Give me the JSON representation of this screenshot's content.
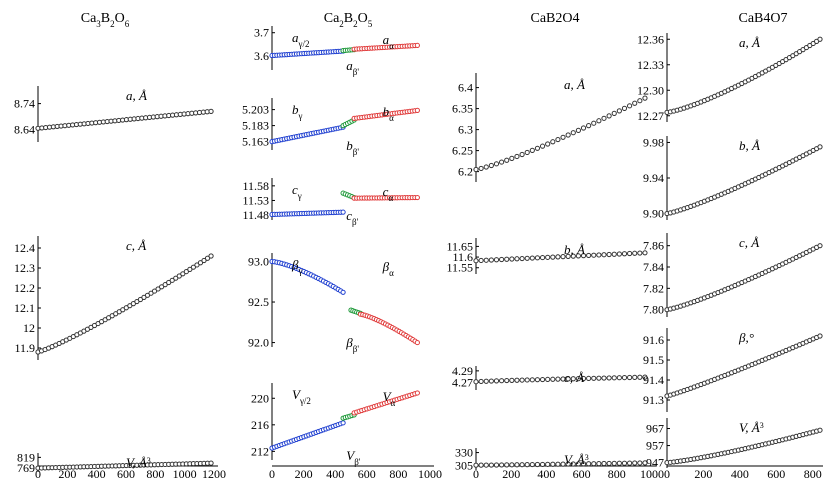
{
  "chart_data": {
    "type": "scatter",
    "markers": {
      "open_circle_color": "#333333",
      "gamma_color": "#1f3fd0",
      "beta_prime_color": "#1f9a3a",
      "alpha_color": "#e03a3a"
    },
    "columns": [
      {
        "title": "Ca3B2O6",
        "x_ticks": [
          "0",
          "200",
          "400",
          "600",
          "800",
          "1000",
          "1200"
        ],
        "xlim": [
          0,
          1200
        ],
        "panels": [
          {
            "label": "a, Å",
            "ylim": [
              8.6,
              8.8
            ],
            "y_ticks": [
              "8.74",
              "8.64"
            ],
            "series": [
              {
                "x_start": 0,
                "x_end": 1180,
                "n": 46,
                "y_start": 8.645,
                "y_end": 8.71,
                "color": "#333333"
              }
            ]
          },
          {
            "label": "c, Å",
            "ylim": [
              11.85,
              12.45
            ],
            "y_ticks": [
              "12.4",
              "12.3",
              "12.2",
              "12.1",
              "12",
              "11.9"
            ],
            "series": [
              {
                "x_start": 0,
                "x_end": 1180,
                "n": 50,
                "y_start": 11.88,
                "y_end": 12.36,
                "color": "#333333",
                "curve": 1.15
              }
            ]
          },
          {
            "label": "V, Å3",
            "ylim": [
              760,
              830
            ],
            "y_ticks": [
              "819",
              "769"
            ],
            "series": [
              {
                "x_start": 0,
                "x_end": 1180,
                "n": 50,
                "y_start": 769,
                "y_end": 792,
                "color": "#333333"
              }
            ]
          }
        ]
      },
      {
        "title": "Ca2B2O5",
        "x_ticks": [
          "0",
          "200",
          "400",
          "600",
          "800",
          "1000"
        ],
        "xlim": [
          0,
          1000
        ],
        "panels": [
          {
            "label": "aγ/2",
            "label2": "aβ'",
            "label3": "aα",
            "ylim": [
              3.55,
              3.72
            ],
            "y_ticks": [
              "3.7",
              "3.6"
            ],
            "series": [
              {
                "x_start": 0,
                "x_end": 450,
                "n": 30,
                "y_start": 3.603,
                "y_end": 3.622,
                "color": "#1f3fd0"
              },
              {
                "x_start": 450,
                "x_end": 520,
                "n": 6,
                "y_start": 3.624,
                "y_end": 3.628,
                "color": "#1f9a3a"
              },
              {
                "x_start": 520,
                "x_end": 920,
                "n": 26,
                "y_start": 3.63,
                "y_end": 3.646,
                "color": "#e03a3a"
              }
            ]
          },
          {
            "label": "bγ",
            "label2": "bβ'",
            "label3": "bα",
            "ylim": [
              5.155,
              5.215
            ],
            "y_ticks": [
              "5.203",
              "5.183",
              "5.163"
            ],
            "series": [
              {
                "x_start": 0,
                "x_end": 450,
                "n": 30,
                "y_start": 5.163,
                "y_end": 5.181,
                "color": "#1f3fd0"
              },
              {
                "x_start": 450,
                "x_end": 520,
                "n": 6,
                "y_start": 5.183,
                "y_end": 5.19,
                "color": "#1f9a3a"
              },
              {
                "x_start": 520,
                "x_end": 920,
                "n": 26,
                "y_start": 5.192,
                "y_end": 5.202,
                "color": "#e03a3a"
              }
            ]
          },
          {
            "label": "cγ",
            "label2": "cβ'",
            "label3": "cα",
            "ylim": [
              11.47,
              11.6
            ],
            "y_ticks": [
              "11.58",
              "11.53",
              "11.48"
            ],
            "series": [
              {
                "x_start": 0,
                "x_end": 450,
                "n": 30,
                "y_start": 11.482,
                "y_end": 11.49,
                "color": "#1f3fd0"
              },
              {
                "x_start": 450,
                "x_end": 520,
                "n": 6,
                "y_start": 11.555,
                "y_end": 11.54,
                "color": "#1f9a3a"
              },
              {
                "x_start": 520,
                "x_end": 920,
                "n": 26,
                "y_start": 11.538,
                "y_end": 11.54,
                "color": "#e03a3a"
              }
            ]
          },
          {
            "label": "βγ",
            "label2": "ββ'",
            "label3": "βα",
            "ylim": [
              91.97,
              93.08
            ],
            "y_ticks": [
              "93.0",
              "92.5",
              "92.0"
            ],
            "series": [
              {
                "x_start": 0,
                "x_end": 450,
                "n": 30,
                "y_start": 93.0,
                "y_end": 92.62,
                "color": "#1f3fd0",
                "curve": 1.4
              },
              {
                "x_start": 500,
                "x_end": 560,
                "n": 6,
                "y_start": 92.4,
                "y_end": 92.36,
                "color": "#1f9a3a"
              },
              {
                "x_start": 560,
                "x_end": 920,
                "n": 26,
                "y_start": 92.35,
                "y_end": 92.0,
                "color": "#e03a3a",
                "curve": 1.3
              }
            ]
          },
          {
            "label": "Vγ/2",
            "label2": "Vβ'",
            "label3": "Vα",
            "ylim": [
              211,
              222
            ],
            "y_ticks": [
              "220",
              "216",
              "212"
            ],
            "series": [
              {
                "x_start": 0,
                "x_end": 450,
                "n": 30,
                "y_start": 212.5,
                "y_end": 216.3,
                "color": "#1f3fd0"
              },
              {
                "x_start": 450,
                "x_end": 520,
                "n": 6,
                "y_start": 217.0,
                "y_end": 217.5,
                "color": "#1f9a3a"
              },
              {
                "x_start": 520,
                "x_end": 920,
                "n": 26,
                "y_start": 217.8,
                "y_end": 220.8,
                "color": "#e03a3a"
              }
            ]
          }
        ]
      },
      {
        "title": "CaB2O4",
        "x_ticks": [
          "0",
          "200",
          "400",
          "600",
          "800",
          "1000"
        ],
        "xlim": [
          0,
          1000
        ],
        "panels": [
          {
            "label": "a, Å",
            "ylim": [
              6.18,
              6.43
            ],
            "y_ticks": [
              "6.4",
              "6.35",
              "6.3",
              "6.25",
              "6.2"
            ],
            "series": [
              {
                "x_start": 0,
                "x_end": 960,
                "n": 34,
                "y_start": 6.205,
                "y_end": 6.375,
                "color": "#333333",
                "curve": 1.2
              }
            ]
          },
          {
            "label": "b, Å",
            "ylim": [
              11.53,
              11.68
            ],
            "y_ticks": [
              "11.65",
              "11.6",
              "11.55"
            ],
            "series": [
              {
                "x_start": 0,
                "x_end": 960,
                "n": 34,
                "y_start": 11.583,
                "y_end": 11.62,
                "color": "#333333"
              }
            ]
          },
          {
            "label": "c, Å",
            "ylim": [
              4.26,
              4.295
            ],
            "y_ticks": [
              "4.29",
              "4.27"
            ],
            "series": [
              {
                "x_start": 0,
                "x_end": 960,
                "n": 34,
                "y_start": 4.271,
                "y_end": 4.279,
                "color": "#333333",
                "curve": 0.8
              }
            ]
          },
          {
            "label": "V, Å3",
            "ylim": [
              300,
              335
            ],
            "y_ticks": [
              "330",
              "305"
            ],
            "series": [
              {
                "x_start": 0,
                "x_end": 960,
                "n": 34,
                "y_start": 305.5,
                "y_end": 310,
                "color": "#333333",
                "curve": 1.2
              }
            ]
          }
        ]
      },
      {
        "title": "CaB4O7",
        "x_ticks": [
          "0",
          "200",
          "400",
          "600",
          "800"
        ],
        "xlim": [
          0,
          840
        ],
        "panels": [
          {
            "label": "a, Å",
            "ylim": [
              12.265,
              12.365
            ],
            "y_ticks": [
              "12.36",
              "12.33",
              "12.30",
              "12.27"
            ],
            "series": [
              {
                "x_start": 0,
                "x_end": 840,
                "n": 46,
                "y_start": 12.274,
                "y_end": 12.36,
                "color": "#333333",
                "curve": 1.3
              }
            ]
          },
          {
            "label": "b, Å",
            "ylim": [
              9.895,
              9.985
            ],
            "y_ticks": [
              "9.98",
              "9.94",
              "9.90"
            ],
            "series": [
              {
                "x_start": 0,
                "x_end": 840,
                "n": 46,
                "y_start": 9.9,
                "y_end": 9.975,
                "color": "#333333",
                "curve": 1.2
              }
            ]
          },
          {
            "label": "c, Å",
            "ylim": [
              7.795,
              7.87
            ],
            "y_ticks": [
              "7.86",
              "7.84",
              "7.82",
              "7.80"
            ],
            "series": [
              {
                "x_start": 0,
                "x_end": 840,
                "n": 46,
                "y_start": 7.8,
                "y_end": 7.86,
                "color": "#333333",
                "curve": 1.2
              }
            ]
          },
          {
            "label": "β,°",
            "ylim": [
              91.25,
              91.65
            ],
            "y_ticks": [
              "91.6",
              "91.5",
              "91.4",
              "91.3"
            ],
            "series": [
              {
                "x_start": 0,
                "x_end": 840,
                "n": 46,
                "y_start": 91.32,
                "y_end": 91.62,
                "color": "#333333",
                "curve": 1.1
              }
            ]
          },
          {
            "label": "V, Å3",
            "ylim": [
              945,
              972
            ],
            "y_ticks": [
              "967",
              "957",
              "947"
            ],
            "series": [
              {
                "x_start": 0,
                "x_end": 840,
                "n": 46,
                "y_start": 947,
                "y_end": 966,
                "color": "#333333",
                "curve": 1.25
              }
            ]
          }
        ]
      }
    ]
  }
}
